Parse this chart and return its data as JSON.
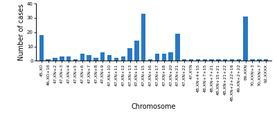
{
  "categories": [
    "45,XO",
    "46,XO+16",
    "47,XN+2",
    "47,XN+3",
    "47,XN+4",
    "47,XN+5",
    "47,XN+6",
    "47,XN+7",
    "47,XN+8",
    "47,XN+9",
    "47,XN+10",
    "47,XN+11",
    "47,XN+12",
    "47,XN+13",
    "47,XN+14",
    "47,XN+15",
    "47,XN+16",
    "47,XN+17",
    "47,XN+18",
    "47,XN+20",
    "47,XN+21",
    "47,XN+22",
    "47,XYN",
    "48,XN+4+15",
    "48,XN+7+15",
    "48,XN+7+21",
    "48,XN+15+21",
    "48,XN+21+22",
    "48,XN+2+22+16",
    "49,XN+2+22",
    "69,XXN",
    "70,XXN+3",
    "70,XXN+7",
    "92,XXXX"
  ],
  "values": [
    18,
    1,
    2,
    3,
    3,
    1,
    5,
    4,
    2,
    6,
    4,
    2,
    3,
    9,
    14,
    33,
    1,
    5,
    5,
    6,
    19,
    1,
    1,
    1,
    1,
    1,
    1,
    1,
    1,
    1,
    31,
    1,
    1,
    1
  ],
  "bar_color": "#2878c4",
  "xlabel": "Chromosome",
  "ylabel": "Number of cases",
  "ylim": [
    0,
    40
  ],
  "yticks": [
    0,
    10,
    20,
    30,
    40
  ],
  "xlabel_fontsize": 7,
  "ylabel_fontsize": 7,
  "tick_fontsize": 4.5,
  "bar_width": 0.65
}
